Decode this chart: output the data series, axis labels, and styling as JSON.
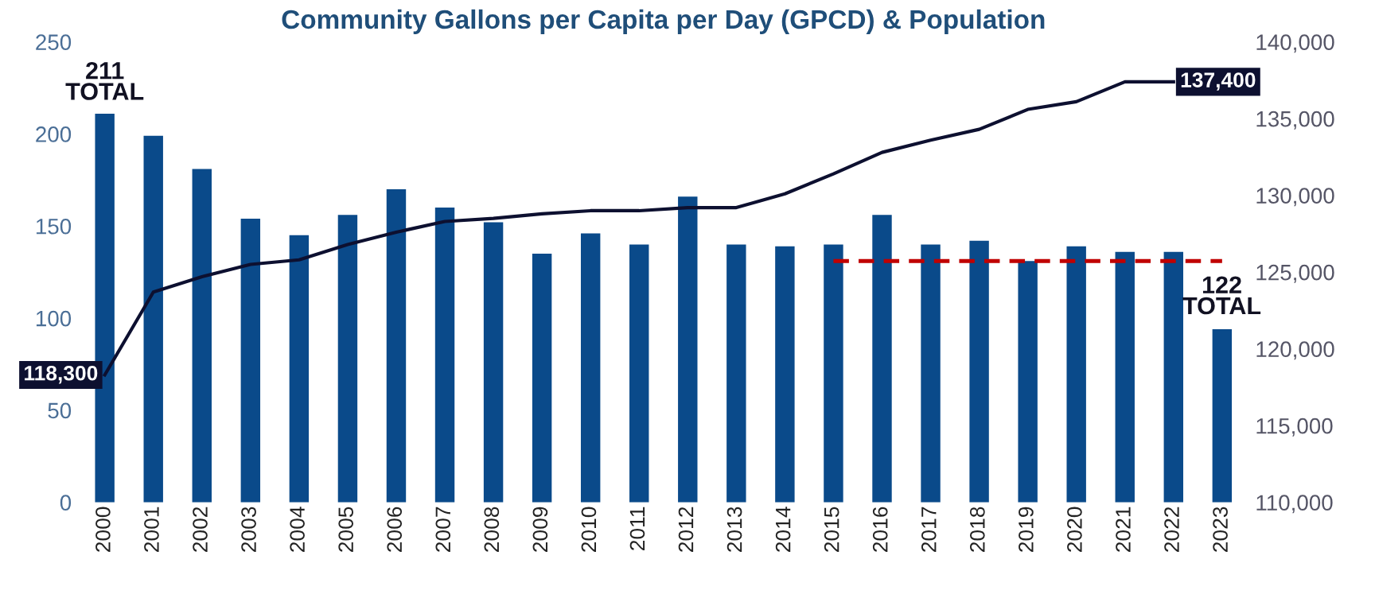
{
  "chart_data": {
    "type": "bar",
    "title": "Community Gallons per Capita per Day (GPCD) & Population",
    "categories": [
      "2000",
      "2001",
      "2002",
      "2003",
      "2004",
      "2005",
      "2006",
      "2007",
      "2008",
      "2009",
      "2010",
      "2011",
      "2012",
      "2013",
      "2014",
      "2015",
      "2016",
      "2017",
      "2018",
      "2019",
      "2020",
      "2021",
      "2022",
      "2023"
    ],
    "series": [
      {
        "color": "#0a4a8a",
        "values": [
          211,
          199,
          181,
          154,
          145,
          156,
          170,
          160,
          152,
          135,
          146,
          140,
          166,
          140,
          139,
          140,
          156,
          140,
          142,
          131,
          139,
          136,
          136,
          94
        ],
        "value_labels": [
          "211\nTOTAL",
          null,
          null,
          null,
          null,
          null,
          null,
          null,
          null,
          null,
          null,
          null,
          null,
          null,
          null,
          null,
          null,
          null,
          null,
          null,
          null,
          null,
          null,
          null
        ]
      },
      {
        "type": "line",
        "axis": "y2",
        "color": "#0d1030",
        "values": [
          118300,
          123700,
          124700,
          125500,
          125800,
          126800,
          127600,
          128300,
          128500,
          128800,
          129000,
          129000,
          129200,
          129200,
          130100,
          131400,
          132800,
          133600,
          134300,
          135600,
          136100,
          137400,
          137400,
          null
        ],
        "value_labels": [
          "118,300",
          null,
          null,
          null,
          null,
          null,
          null,
          null,
          null,
          null,
          null,
          null,
          null,
          null,
          null,
          null,
          null,
          null,
          null,
          null,
          null,
          null,
          "137,400",
          null
        ]
      },
      {
        "type": "line",
        "color": "#c00000",
        "line_style": "dashed",
        "values": [
          null,
          null,
          null,
          null,
          null,
          null,
          null,
          null,
          null,
          null,
          null,
          null,
          null,
          null,
          null,
          131,
          131,
          131,
          131,
          131,
          131,
          131,
          131,
          131
        ]
      }
    ],
    "annotations": [
      "122\nTOTAL"
    ],
    "ylim": [
      0,
      250
    ],
    "yticks": [
      0,
      50,
      100,
      150,
      200,
      250
    ],
    "y2lim": [
      110000,
      140000
    ],
    "y2ticks": [
      {
        "value": 110000,
        "label": "110,000"
      },
      {
        "value": 115000,
        "label": "115,000"
      },
      {
        "value": 120000,
        "label": "120,000"
      },
      {
        "value": 125000,
        "label": "125,000"
      },
      {
        "value": 130000,
        "label": "130,000"
      },
      {
        "value": 135000,
        "label": "135,000"
      },
      {
        "value": 140000,
        "label": "140,000"
      }
    ],
    "grid": false,
    "legend": false
  }
}
